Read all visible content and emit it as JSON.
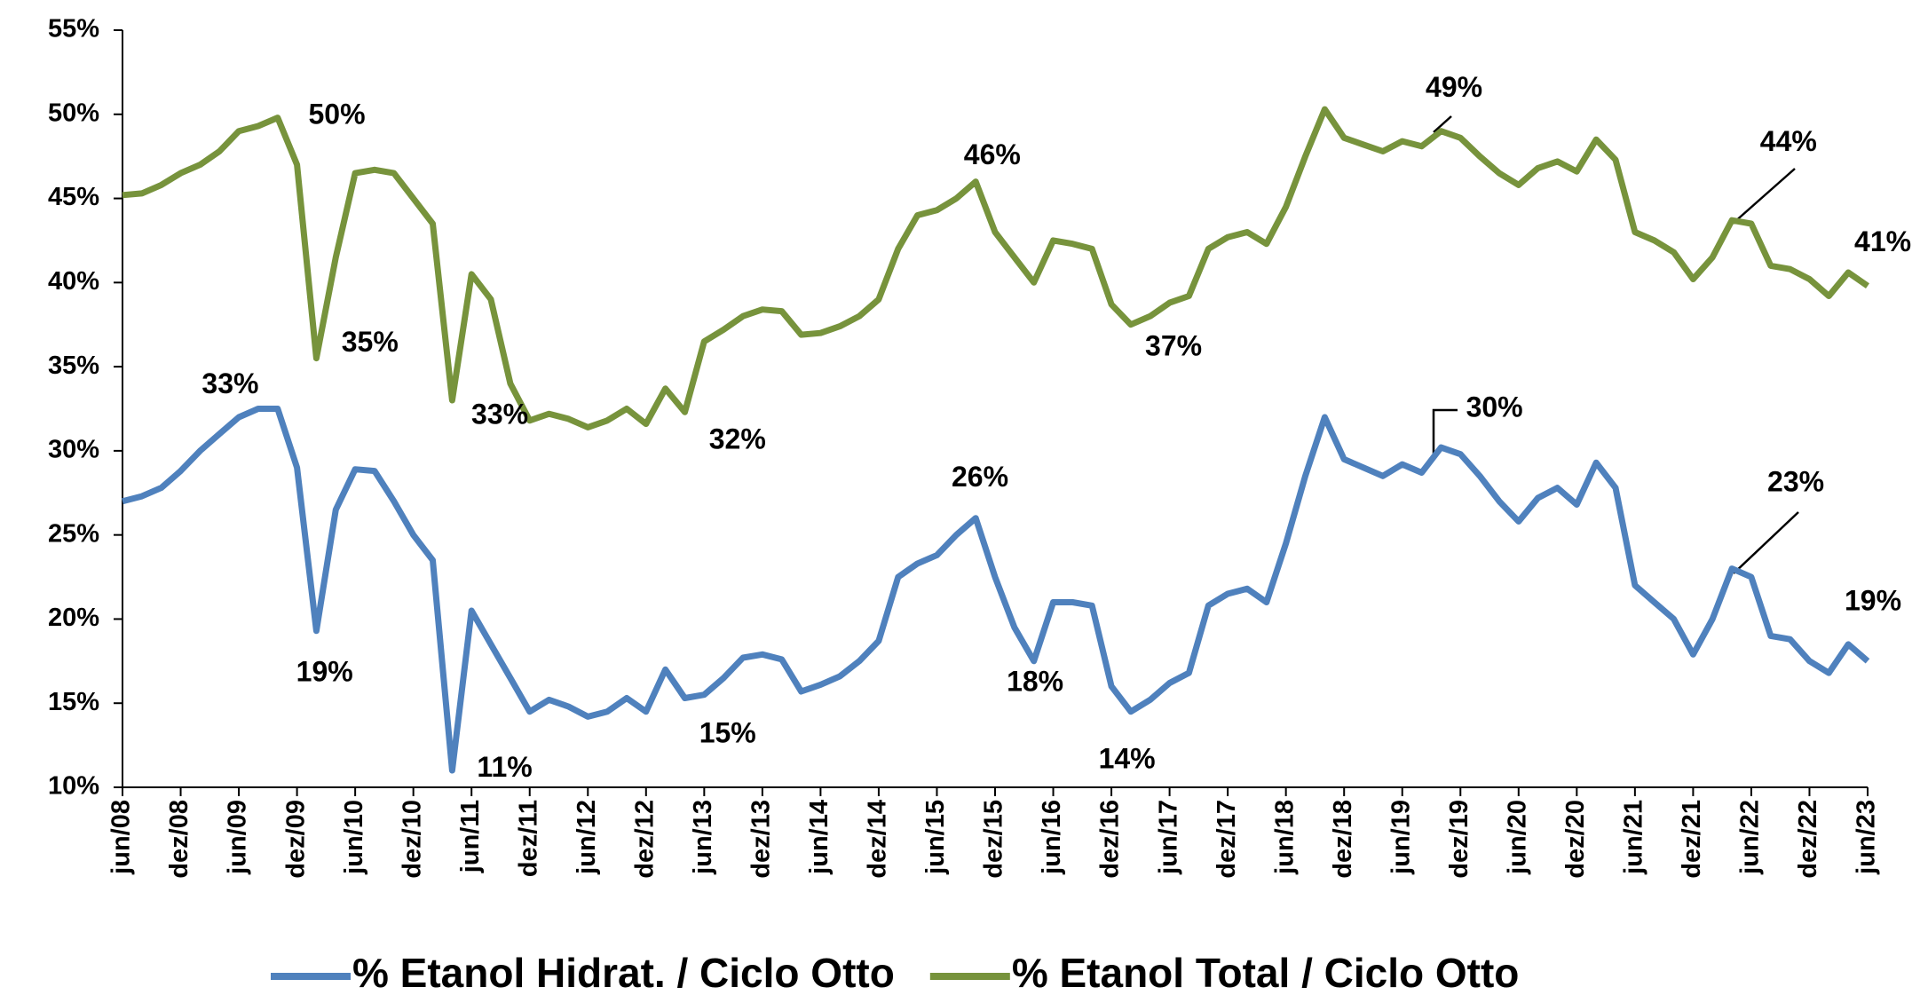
{
  "chart_data": {
    "type": "line",
    "categories": [
      "jun/08",
      null,
      null,
      "dez/08",
      null,
      null,
      "jun/09",
      null,
      null,
      "dez/09",
      null,
      null,
      "jun/10",
      null,
      null,
      "dez/10",
      null,
      null,
      "jun/11",
      null,
      null,
      "dez/11",
      null,
      null,
      "jun/12",
      null,
      null,
      "dez/12",
      null,
      null,
      "jun/13",
      null,
      null,
      "dez/13",
      null,
      null,
      "jun/14",
      null,
      null,
      "dez/14",
      null,
      null,
      "jun/15",
      null,
      null,
      "dez/15",
      null,
      null,
      "jun/16",
      null,
      null,
      "dez/16",
      null,
      null,
      "jun/17",
      null,
      null,
      "dez/17",
      null,
      null,
      "jun/18",
      null,
      null,
      "dez/18",
      null,
      null,
      "jun/19",
      null,
      null,
      "dez/19",
      null,
      null,
      "jun/20",
      null,
      null,
      "dez/20",
      null,
      null,
      "jun/21",
      null,
      null,
      "dez/21",
      null,
      null,
      "jun/22",
      null,
      null,
      "dez/22",
      null,
      null,
      "jun/23"
    ],
    "series": [
      {
        "name": "% Etanol Hidrat. / Ciclo Otto",
        "color": "#4f81bd",
        "values": [
          27.0,
          27.3,
          27.8,
          28.8,
          30.0,
          31.0,
          32.0,
          32.5,
          32.5,
          29.0,
          19.3,
          26.5,
          28.9,
          28.8,
          27.0,
          25.0,
          23.5,
          11.0,
          20.5,
          18.5,
          16.5,
          14.5,
          15.2,
          14.8,
          14.2,
          14.5,
          15.3,
          14.5,
          17.0,
          15.3,
          15.5,
          16.5,
          17.7,
          17.9,
          17.6,
          15.7,
          16.1,
          16.6,
          17.5,
          18.7,
          22.5,
          23.3,
          23.8,
          25.0,
          26.0,
          22.5,
          19.5,
          17.5,
          21.0,
          21.0,
          20.8,
          16.0,
          14.5,
          15.2,
          16.2,
          16.8,
          20.8,
          21.5,
          21.8,
          21.0,
          24.5,
          28.5,
          32.0,
          29.5,
          29.0,
          28.5,
          29.2,
          28.7,
          30.2,
          29.8,
          28.5,
          27.0,
          25.8,
          27.2,
          27.8,
          26.8,
          29.3,
          27.8,
          22.0,
          21.0,
          20.0,
          17.9,
          20.0,
          23.0,
          22.5,
          19.0,
          18.8,
          17.5,
          16.8,
          18.5,
          17.5
        ]
      },
      {
        "name": "% Etanol Total / Ciclo Otto",
        "color": "#77933c",
        "values": [
          45.2,
          45.3,
          45.8,
          46.5,
          47.0,
          47.8,
          49.0,
          49.3,
          49.8,
          47.0,
          35.5,
          41.5,
          46.5,
          46.7,
          46.5,
          45.0,
          43.5,
          33.0,
          40.5,
          39.0,
          34.0,
          31.8,
          32.2,
          31.9,
          31.4,
          31.8,
          32.5,
          31.6,
          33.7,
          32.3,
          36.5,
          37.2,
          38.0,
          38.4,
          38.3,
          36.9,
          37.0,
          37.4,
          38.0,
          39.0,
          42.0,
          44.0,
          44.3,
          45.0,
          46.0,
          43.0,
          41.5,
          40.0,
          42.5,
          42.3,
          42.0,
          38.7,
          37.5,
          38.0,
          38.8,
          39.2,
          42.0,
          42.7,
          43.0,
          42.3,
          44.5,
          47.5,
          50.3,
          48.6,
          48.2,
          47.8,
          48.4,
          48.1,
          49.0,
          48.6,
          47.5,
          46.5,
          45.8,
          46.8,
          47.2,
          46.6,
          48.5,
          47.3,
          43.0,
          42.5,
          41.8,
          40.2,
          41.5,
          43.7,
          43.5,
          41.0,
          40.8,
          40.2,
          39.2,
          40.6,
          39.8
        ]
      }
    ],
    "ylim": [
      10,
      55
    ],
    "yticks": [
      {
        "value": 10,
        "label": "10%"
      },
      {
        "value": 15,
        "label": "15%"
      },
      {
        "value": 20,
        "label": "20%"
      },
      {
        "value": 25,
        "label": "25%"
      },
      {
        "value": 30,
        "label": "30%"
      },
      {
        "value": 35,
        "label": "35%"
      },
      {
        "value": 40,
        "label": "40%"
      },
      {
        "value": 45,
        "label": "45%"
      },
      {
        "value": 50,
        "label": "50%"
      },
      {
        "value": 55,
        "label": "55%"
      }
    ],
    "annotations": [
      "50%",
      "35%",
      "33%",
      "32%",
      "46%",
      "37%",
      "49%",
      "44%",
      "41%",
      "33%",
      "19%",
      "11%",
      "15%",
      "26%",
      "18%",
      "14%",
      "30%",
      "23%",
      "19%"
    ],
    "legend": "bottom"
  }
}
